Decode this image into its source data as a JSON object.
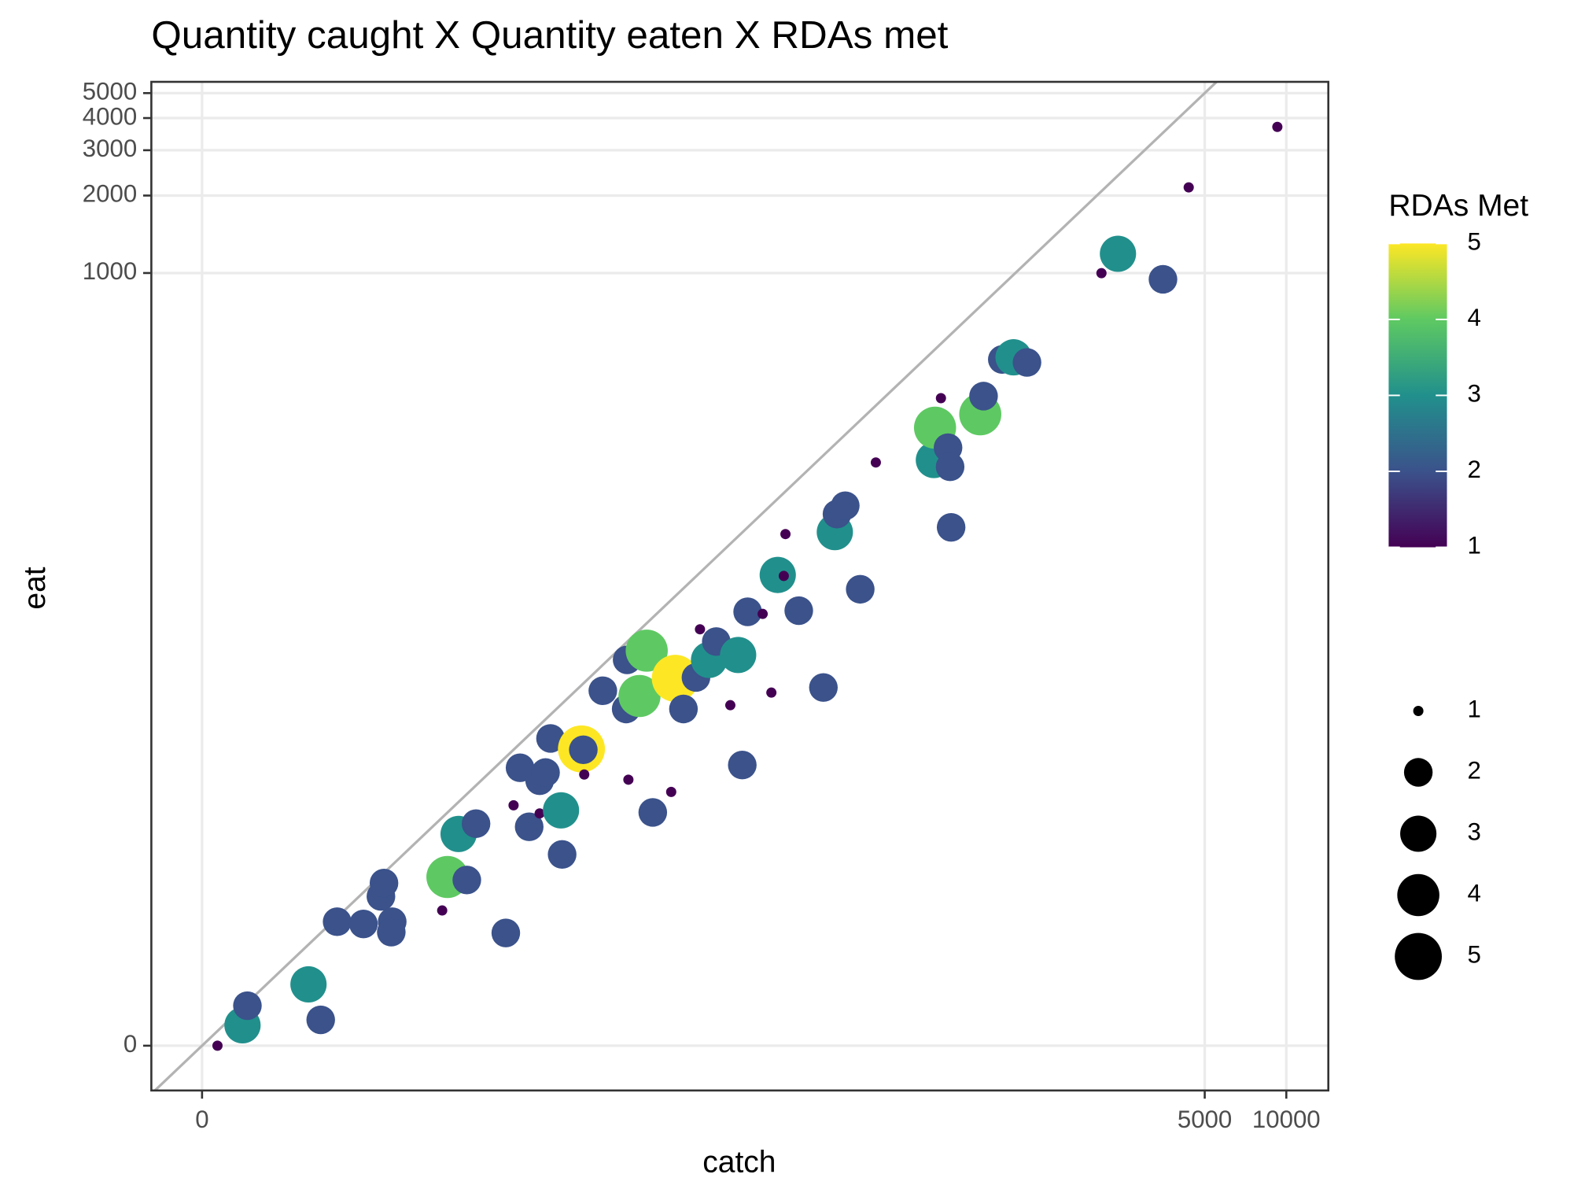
{
  "chart_data": {
    "type": "scatter",
    "title": "Quantity caught X Quantity eaten X RDAs met",
    "x_label": "catch",
    "y_label": "eat",
    "xscale": "log1p",
    "yscale": "log1p",
    "xlim": [
      -0.35,
      14290
    ],
    "ylim": [
      -0.33,
      5530
    ],
    "xticks": [
      0,
      5000,
      10000
    ],
    "yticks": [
      0,
      1000,
      2000,
      3000,
      4000,
      5000
    ],
    "grid": true,
    "identity_line": true,
    "identity_line_color": "#b3b3b3",
    "x": [
      0.14,
      0.41,
      0.47,
      1.47,
      1.74,
      2.15,
      2.94,
      3.57,
      3.69,
      4.03,
      3.99,
      6.69,
      7.04,
      8.48,
      7.84,
      9.25,
      12.2,
      13.1,
      13.9,
      15.1,
      16.6,
      17.5,
      16.6,
      18.3,
      20.3,
      20.1,
      24.1,
      24.5,
      24.7,
      29.1,
      36.4,
      35.7,
      36,
      40.1,
      42.7,
      45,
      52.8,
      54.7,
      58.7,
      65.4,
      67.7,
      73.2,
      77.9,
      87.9,
      94,
      97.4,
      102,
      116,
      125,
      132,
      139,
      141,
      158,
      195,
      215,
      219,
      235,
      267,
      305,
      500,
      505,
      531,
      564,
      574,
      579,
      742,
      763,
      895,
      985,
      1104,
      2079,
      2392,
      3507,
      4364,
      9267
    ],
    "y": [
      0,
      0.2,
      0.43,
      0.73,
      0.26,
      2.03,
      1.97,
      2.8,
      3.28,
      2.03,
      1.76,
      2.35,
      3.52,
      3.4,
      5.64,
      6.28,
      1.74,
      7.58,
      11,
      6.08,
      9.69,
      10.5,
      6.98,
      14.6,
      4.53,
      7.2,
      13.2,
      13.1,
      10.3,
      22.9,
      9.79,
      19.3,
      30.5,
      21.8,
      33.2,
      7.05,
      8.67,
      25.7,
      19.3,
      25.9,
      40.4,
      30.5,
      36.1,
      20,
      31.9,
      11.3,
      47.4,
      46.5,
      22.5,
      66.3,
      65.7,
      96,
      47.9,
      23.6,
      97.7,
      115,
      124,
      58.2,
      183,
      187,
      250,
      326,
      209,
      176,
      102,
      282,
      332,
      461,
      470,
      449,
      999,
      1188,
      945,
      2152,
      3697
    ],
    "rda": [
      1,
      3,
      2,
      3,
      2,
      2,
      2,
      2,
      2,
      2,
      2,
      1,
      4,
      2,
      3,
      2,
      2,
      1,
      2,
      2,
      2,
      2,
      1,
      2,
      2,
      3,
      5,
      2,
      1,
      2,
      1,
      2,
      2,
      4,
      4,
      2,
      1,
      5,
      2,
      2,
      1,
      3,
      2,
      1,
      3,
      2,
      2,
      1,
      1,
      3,
      1,
      1,
      2,
      2,
      3,
      2,
      2,
      2,
      1,
      3,
      4,
      1,
      2,
      2,
      2,
      4,
      2,
      2,
      3,
      2,
      1,
      3,
      2,
      1,
      1
    ],
    "color_legend": {
      "title": "RDAs Met",
      "lim": [
        1,
        5
      ],
      "ticks": [
        1,
        2,
        3,
        4,
        5
      ],
      "colors": [
        "#440154",
        "#3b528b",
        "#21908c",
        "#5ec962",
        "#fde725"
      ]
    },
    "size_legend": {
      "values": [
        1,
        2,
        3,
        4,
        5
      ]
    }
  }
}
